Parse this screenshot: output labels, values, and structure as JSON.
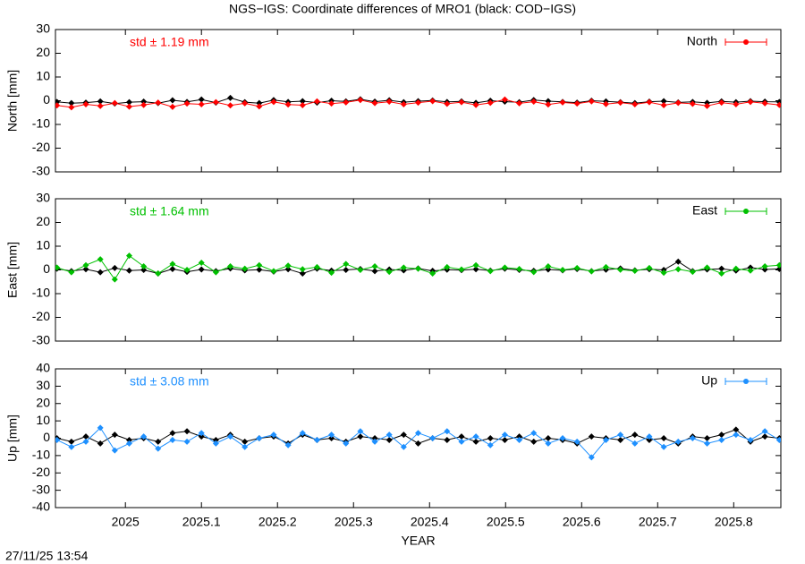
{
  "title": "NGS−IGS: Coordinate differences of MRO1 (black: COD−IGS)",
  "timestamp": "27/11/25 13:54",
  "chart_data": [
    {
      "type": "line",
      "ylabel": "North [mm]",
      "annotation": "std ± 1.19 mm",
      "xlim": [
        2024.908,
        2025.862
      ],
      "ylim": [
        -30,
        30
      ],
      "yticks": [
        -30,
        -20,
        -10,
        0,
        10,
        20,
        30
      ],
      "x": [
        2024.91,
        2024.929,
        2024.948,
        2024.967,
        2024.986,
        2025.005,
        2025.024,
        2025.043,
        2025.062,
        2025.081,
        2025.1,
        2025.119,
        2025.138,
        2025.157,
        2025.176,
        2025.195,
        2025.214,
        2025.233,
        2025.252,
        2025.271,
        2025.29,
        2025.309,
        2025.328,
        2025.347,
        2025.366,
        2025.385,
        2025.404,
        2025.423,
        2025.442,
        2025.461,
        2025.48,
        2025.499,
        2025.518,
        2025.537,
        2025.556,
        2025.575,
        2025.594,
        2025.613,
        2025.632,
        2025.651,
        2025.67,
        2025.689,
        2025.708,
        2025.727,
        2025.746,
        2025.765,
        2025.784,
        2025.803,
        2025.822,
        2025.841,
        2025.86
      ],
      "series": [
        {
          "color": "#000000",
          "values": [
            -0.5,
            -1,
            -0.8,
            -0.3,
            -1.2,
            -0.6,
            -0.4,
            -1,
            0.2,
            -0.5,
            0.5,
            -0.8,
            1.2,
            -0.6,
            -1,
            0.3,
            -0.5,
            -0.2,
            -0.8,
            0,
            -0.3,
            0.6,
            -0.4,
            0.2,
            -0.6,
            -0.2,
            0.1,
            -0.5,
            -0.3,
            -0.9,
            0,
            -0.4,
            -0.6,
            0.3,
            -0.2,
            -0.5,
            -0.8,
            0,
            -0.3,
            -0.6,
            -1,
            -0.4,
            -0.2,
            -0.7,
            -0.5,
            -0.9,
            -0.3,
            -0.6,
            -0.2,
            -0.4,
            -0.5
          ]
        },
        {
          "name": "North",
          "color": "#ff0000",
          "values": [
            -2,
            -2.8,
            -1.5,
            -2.2,
            -1,
            -2.5,
            -1.8,
            -0.8,
            -2.6,
            -1.2,
            -1.5,
            -0.6,
            -2,
            -1.1,
            -2.4,
            -0.5,
            -1.6,
            -1.9,
            -0.3,
            -1.2,
            -0.7,
            0.3,
            -1,
            -0.4,
            -1.5,
            -0.8,
            -0.2,
            -1.3,
            -0.6,
            -1.8,
            -0.9,
            0.5,
            -1.1,
            -0.4,
            -1.6,
            -0.7,
            -1.2,
            -0.3,
            -1.4,
            -0.8,
            -1.5,
            -0.6,
            -1.9,
            -0.9,
            -1.3,
            -2.2,
            -0.8,
            -1.5,
            -0.5,
            -1.1,
            -1.8
          ]
        }
      ]
    },
    {
      "type": "line",
      "ylabel": "East [mm]",
      "annotation": "std ± 1.64 mm",
      "xlim": [
        2024.908,
        2025.862
      ],
      "ylim": [
        -30,
        30
      ],
      "yticks": [
        -30,
        -20,
        -10,
        0,
        10,
        20,
        30
      ],
      "x": [
        2024.91,
        2024.929,
        2024.948,
        2024.967,
        2024.986,
        2025.005,
        2025.024,
        2025.043,
        2025.062,
        2025.081,
        2025.1,
        2025.119,
        2025.138,
        2025.157,
        2025.176,
        2025.195,
        2025.214,
        2025.233,
        2025.252,
        2025.271,
        2025.29,
        2025.309,
        2025.328,
        2025.347,
        2025.366,
        2025.385,
        2025.404,
        2025.423,
        2025.442,
        2025.461,
        2025.48,
        2025.499,
        2025.518,
        2025.537,
        2025.556,
        2025.575,
        2025.594,
        2025.613,
        2025.632,
        2025.651,
        2025.67,
        2025.689,
        2025.708,
        2025.727,
        2025.746,
        2025.765,
        2025.784,
        2025.803,
        2025.822,
        2025.841,
        2025.86
      ],
      "series": [
        {
          "color": "#000000",
          "values": [
            0.5,
            -0.5,
            0.3,
            -1,
            0.8,
            -0.3,
            0,
            -1.5,
            0.4,
            -0.8,
            0.2,
            -0.5,
            0.6,
            -0.2,
            0.1,
            -0.7,
            0.3,
            -1.5,
            0.5,
            -0.3,
            0,
            0.4,
            -0.5,
            0.2,
            -0.2,
            0.6,
            -0.4,
            0.1,
            -0.1,
            0.3,
            -0.3,
            0.5,
            0,
            -0.4,
            0.2,
            -0.2,
            0.4,
            -0.5,
            0.1,
            0.6,
            -0.2,
            0.3,
            0,
            3.5,
            -0.5,
            0.2,
            0.5,
            -0.3,
            1,
            0.2,
            0.4
          ]
        },
        {
          "name": "East",
          "color": "#00c000",
          "values": [
            1,
            -1,
            2,
            4.5,
            -4,
            6,
            1.5,
            -1.5,
            2.5,
            0,
            3,
            -1,
            1.5,
            0.5,
            2,
            -0.5,
            1.8,
            0.3,
            1.2,
            -1.2,
            2.5,
            0,
            1.5,
            -0.8,
            1,
            0.5,
            -1.5,
            1.2,
            0.2,
            2,
            -0.5,
            1,
            0.4,
            -0.9,
            1.5,
            0,
            0.8,
            -0.6,
            1.2,
            0.1,
            -0.4,
            0.8,
            -1.2,
            0.3,
            -0.8,
            1,
            -1.5,
            0.5,
            -0.3,
            1.5,
            2
          ]
        }
      ]
    },
    {
      "type": "line",
      "ylabel": "Up [mm]",
      "annotation": "std ± 3.08 mm",
      "xlabel": "YEAR",
      "xlim": [
        2024.908,
        2025.862
      ],
      "ylim": [
        -40,
        40
      ],
      "yticks": [
        -40,
        -30,
        -20,
        -10,
        0,
        10,
        20,
        30,
        40
      ],
      "xticks": [
        2025,
        2025.1,
        2025.2,
        2025.3,
        2025.4,
        2025.5,
        2025.6,
        2025.7,
        2025.8
      ],
      "x": [
        2024.91,
        2024.929,
        2024.948,
        2024.967,
        2024.986,
        2025.005,
        2025.024,
        2025.043,
        2025.062,
        2025.081,
        2025.1,
        2025.119,
        2025.138,
        2025.157,
        2025.176,
        2025.195,
        2025.214,
        2025.233,
        2025.252,
        2025.271,
        2025.29,
        2025.309,
        2025.328,
        2025.347,
        2025.366,
        2025.385,
        2025.404,
        2025.423,
        2025.442,
        2025.461,
        2025.48,
        2025.499,
        2025.518,
        2025.537,
        2025.556,
        2025.575,
        2025.594,
        2025.613,
        2025.632,
        2025.651,
        2025.67,
        2025.689,
        2025.708,
        2025.727,
        2025.746,
        2025.765,
        2025.784,
        2025.803,
        2025.822,
        2025.841,
        2025.86
      ],
      "series": [
        {
          "color": "#000000",
          "values": [
            0,
            -2,
            1,
            -3,
            2,
            -1,
            0,
            -2,
            3,
            4,
            1,
            -1,
            2,
            -2,
            0,
            1,
            -3,
            2,
            -1,
            0,
            -2,
            1,
            0,
            -1,
            2,
            -3,
            0,
            -1,
            1,
            -2,
            0,
            -1,
            1,
            -2,
            0,
            -1,
            -3,
            1,
            0,
            -1,
            2,
            -1,
            0,
            -3,
            1,
            0,
            2,
            5,
            -2,
            1,
            0
          ]
        },
        {
          "name": "Up",
          "color": "#1e90ff",
          "values": [
            -1,
            -5,
            -2,
            6,
            -7,
            -3,
            1,
            -6,
            -1,
            -2,
            3,
            -3,
            1,
            -5,
            0,
            2,
            -4,
            3,
            -1,
            2,
            -3,
            4,
            -2,
            2,
            -5,
            3,
            0,
            4,
            -2,
            1,
            -4,
            2,
            -1,
            3,
            -3,
            0,
            -2,
            -11,
            -1,
            2,
            -3,
            1,
            -5,
            -2,
            0,
            -3,
            -1,
            2,
            -1,
            4,
            -1
          ]
        }
      ]
    }
  ]
}
